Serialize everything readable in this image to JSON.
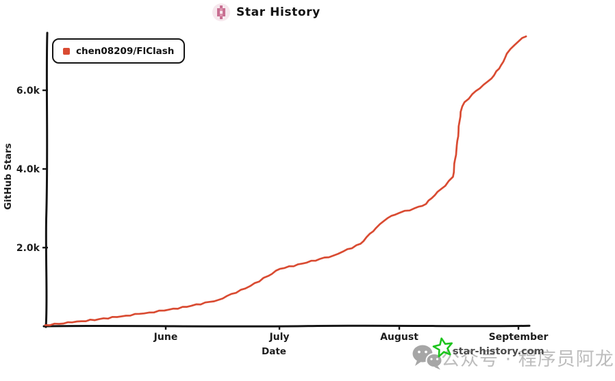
{
  "header": {
    "title": "Star History"
  },
  "legend": {
    "label": "chen08209/FlClash",
    "marker_color": "#d94b32"
  },
  "watermark": {
    "site_text": "star-history.com",
    "wechat_label": "公众号 · 程序员阿龙",
    "star_color": "#1ec41e"
  },
  "chart_data": {
    "type": "line",
    "title": "Star History",
    "xlabel": "Date",
    "ylabel": "GitHub Stars",
    "x_tick_labels": [
      "June",
      "July",
      "August",
      "September"
    ],
    "y_ticks": [
      {
        "label": "2.0k",
        "value": 2000
      },
      {
        "label": "4.0k",
        "value": 4000
      },
      {
        "label": "6.0k",
        "value": 6000
      }
    ],
    "ylim": [
      0,
      7500
    ],
    "x_range": [
      "2024-05-01",
      "2024-09-03"
    ],
    "grid": false,
    "legend_position": "top-left",
    "axis_color": "#141414",
    "series": [
      {
        "name": "chen08209/FlClash",
        "color": "#d94b32",
        "points": [
          [
            "2024-05-01",
            30
          ],
          [
            "2024-05-08",
            100
          ],
          [
            "2024-05-15",
            180
          ],
          [
            "2024-05-22",
            270
          ],
          [
            "2024-05-28",
            350
          ],
          [
            "2024-06-01",
            400
          ],
          [
            "2024-06-08",
            520
          ],
          [
            "2024-06-15",
            670
          ],
          [
            "2024-06-22",
            960
          ],
          [
            "2024-06-28",
            1280
          ],
          [
            "2024-07-01",
            1460
          ],
          [
            "2024-07-08",
            1620
          ],
          [
            "2024-07-15",
            1800
          ],
          [
            "2024-07-22",
            2100
          ],
          [
            "2024-07-26",
            2500
          ],
          [
            "2024-07-29",
            2750
          ],
          [
            "2024-08-01",
            2880
          ],
          [
            "2024-08-05",
            3000
          ],
          [
            "2024-08-08",
            3110
          ],
          [
            "2024-08-11",
            3420
          ],
          [
            "2024-08-13",
            3570
          ],
          [
            "2024-08-15",
            3800
          ],
          [
            "2024-08-16",
            4600
          ],
          [
            "2024-08-17",
            5450
          ],
          [
            "2024-08-18",
            5700
          ],
          [
            "2024-08-20",
            5900
          ],
          [
            "2024-08-22",
            6050
          ],
          [
            "2024-08-25",
            6300
          ],
          [
            "2024-08-27",
            6550
          ],
          [
            "2024-08-29",
            6930
          ],
          [
            "2024-08-31",
            7150
          ],
          [
            "2024-09-02",
            7330
          ],
          [
            "2024-09-03",
            7370
          ]
        ]
      }
    ]
  }
}
